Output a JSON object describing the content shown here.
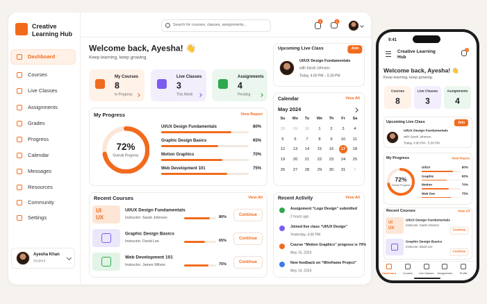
{
  "sidebar": {
    "brand": "Creative Learning Hub",
    "nav": [
      "Dashboard",
      "Courses",
      "Live Classes",
      "Assignments",
      "Grades",
      "Progress",
      "Calendar",
      "Messages",
      "Resources",
      "Community",
      "Settings"
    ],
    "user": {
      "name": "Ayesha Khan",
      "role": "Student"
    }
  },
  "topbar": {
    "search_placeholder": "Search for courses, classes, assignments...",
    "notifications": 3,
    "messages": 2
  },
  "welcome": {
    "title": "Welcome back, Ayesha! 👋",
    "subtitle": "Keep learning, keep growing."
  },
  "stats": [
    {
      "label": "My Courses",
      "value": 8,
      "note": "In Progress"
    },
    {
      "label": "Live Classes",
      "value": 3,
      "note": "This Week"
    },
    {
      "label": "Assignments",
      "value": 4,
      "note": "Pending"
    }
  ],
  "progress": {
    "title": "My Progress",
    "link": "View Report",
    "overall": 72,
    "overall_label": "72%",
    "overall_caption": "Overall Progress",
    "courses": [
      {
        "name": "UI/UX Design Fundamentals",
        "value": 80,
        "label": "80%"
      },
      {
        "name": "Graphic Design Basics",
        "value": 65,
        "label": "65%"
      },
      {
        "name": "Motion Graphics",
        "value": 70,
        "label": "70%"
      },
      {
        "name": "Web Development 101",
        "value": 75,
        "label": "75%"
      }
    ]
  },
  "recent_courses": {
    "title": "Recent Courses",
    "link": "View All",
    "thumb_text": [
      "UI",
      "UX"
    ],
    "items": [
      {
        "name": "UI/UX Design Fundamentals",
        "instructor": "Instructor: Sarah Johnson",
        "value": 80,
        "label": "80%",
        "action": "Continue"
      },
      {
        "name": "Graphic Design Basics",
        "instructor": "Instructor: David Lee",
        "value": 65,
        "label": "65%",
        "action": "Continue"
      },
      {
        "name": "Web Development 101",
        "instructor": "Instructor: James Wilson",
        "value": 75,
        "label": "75%",
        "action": "Continue"
      }
    ]
  },
  "live": {
    "title": "Upcoming Live Class",
    "action": "Join",
    "course": "UI/UX Design Fundamentals",
    "host": "with Sarah Johnson",
    "time": "Today, 4:00 PM – 5:30 PM"
  },
  "calendar": {
    "title": "Calendar",
    "link": "View All",
    "month": "May 2024",
    "weekdays": [
      "Su",
      "Mo",
      "Tu",
      "We",
      "Th",
      "Fr",
      "Sa"
    ],
    "weeks": [
      [
        28,
        29,
        30,
        1,
        2,
        3,
        4
      ],
      [
        5,
        6,
        7,
        8,
        9,
        10,
        11
      ],
      [
        12,
        13,
        14,
        15,
        16,
        17,
        18
      ],
      [
        19,
        20,
        21,
        22,
        23,
        24,
        25
      ],
      [
        26,
        27,
        28,
        29,
        30,
        31,
        1
      ]
    ],
    "selected_day": 17
  },
  "activity": {
    "title": "Recent Activity",
    "link": "View All",
    "items": [
      {
        "text": "Assignment “Logo Design” submitted",
        "time": "2 hours ago"
      },
      {
        "text": "Joined live class “UI/UX Design”",
        "time": "Yesterday, 4:00 PM"
      },
      {
        "text": "Course “Motion Graphics” progress is 70%",
        "time": "May 15, 2024"
      },
      {
        "text": "New feedback on “Wireframe Project”",
        "time": "May 14, 2024"
      }
    ]
  },
  "phone": {
    "time": "9:41",
    "brand": "Creative Learning Hub",
    "notifications": 3,
    "welcome": "Welcome back, Ayesha! 👋",
    "subtitle": "Keep learning, keep growing.",
    "stats": [
      {
        "label": "Courses",
        "value": 8
      },
      {
        "label": "Live Classes",
        "value": 3
      },
      {
        "label": "Assignments",
        "value": 4
      }
    ],
    "live": {
      "title": "Upcoming Live Class",
      "action": "Join",
      "course": "UI/UX Design Fundamentals",
      "host": "with Sarah Johnson",
      "time": "Today, 4:00 PM - 5:30 PM"
    },
    "progress": {
      "title": "My Progress",
      "link": "View Report",
      "overall": 72,
      "overall_label": "72%",
      "overall_caption": "Overall Progress",
      "courses": [
        {
          "name": "UI/UX",
          "value": 80,
          "label": "80%"
        },
        {
          "name": "Graphic",
          "value": 65,
          "label": "65%"
        },
        {
          "name": "Motion",
          "value": 70,
          "label": "70%"
        },
        {
          "name": "Web Dev",
          "value": 75,
          "label": "75%"
        }
      ]
    },
    "recent": {
      "title": "Recent Courses",
      "link": "View All",
      "items": [
        {
          "name": "UI/UX Design Fundamentals",
          "instructor": "Instructor: Sarah Johnson",
          "action": "Continue"
        },
        {
          "name": "Graphic Design Basics",
          "instructor": "Instructor: David Lee",
          "action": "Continue"
        }
      ]
    },
    "tabs": [
      "Dashboard",
      "Courses",
      "Live Classes",
      "Assignments",
      "Profile"
    ]
  }
}
